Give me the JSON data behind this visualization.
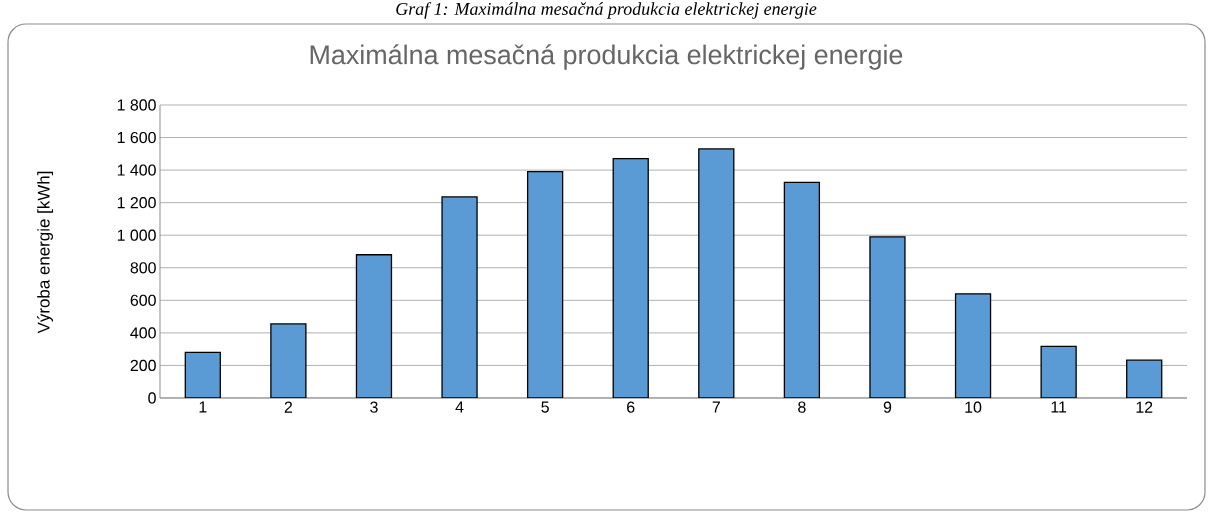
{
  "chart_data": {
    "type": "bar",
    "title": "Maximálna mesačná produkcia elektrickej energie",
    "ylabel": "Výroba energie [kWh]",
    "annotations": [
      "Graf 1: Maximálna mesačná produkcia elektrickej energie"
    ],
    "categories": [
      "1",
      "2",
      "3",
      "4",
      "5",
      "6",
      "7",
      "8",
      "9",
      "10",
      "11",
      "12"
    ],
    "values": [
      280,
      455,
      880,
      1235,
      1390,
      1470,
      1530,
      1325,
      990,
      640,
      317,
      232
    ],
    "color": "#5b9bd5",
    "ylim": [
      0,
      1800
    ],
    "yticks": [
      0,
      200,
      400,
      600,
      800,
      {
        "value": 1000,
        "label": "1 000"
      },
      {
        "value": 1200,
        "label": "1 200"
      },
      {
        "value": 1400,
        "label": "1 400"
      },
      {
        "value": 1600,
        "label": "1 600"
      },
      {
        "value": 1800,
        "label": "1 800"
      }
    ],
    "grid": "y"
  }
}
